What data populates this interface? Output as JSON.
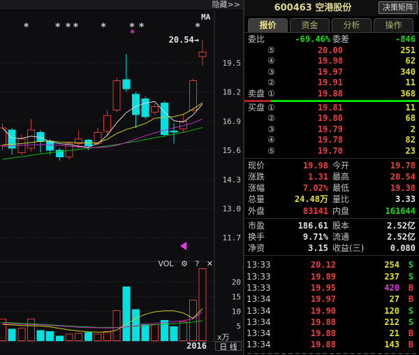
{
  "window": {
    "hide_button": "隐藏>>"
  },
  "header": {
    "code": "600463",
    "name": "空港股份",
    "matrix_button": "决策矩阵"
  },
  "tabs": [
    {
      "label": "报价",
      "name": "quote",
      "active": true
    },
    {
      "label": "资金",
      "name": "capital",
      "active": false
    },
    {
      "label": "分析",
      "name": "analysis",
      "active": false
    },
    {
      "label": "操作",
      "name": "operate",
      "active": false
    }
  ],
  "order_book": {
    "weibi_label": "委比",
    "weibi_value": "-69.46%",
    "weicha_label": "委差",
    "weicha_value": "-846",
    "sell_label": "卖盘",
    "buy_label": "买盘",
    "asks": [
      {
        "level": "⑤",
        "price": "20.00",
        "vol": "251"
      },
      {
        "level": "④",
        "price": "19.98",
        "vol": "62"
      },
      {
        "level": "③",
        "price": "19.97",
        "vol": "340"
      },
      {
        "level": "②",
        "price": "19.91",
        "vol": "11"
      },
      {
        "level": "①",
        "price": "19.88",
        "vol": "368",
        "labeled": true
      }
    ],
    "bids": [
      {
        "level": "①",
        "price": "19.81",
        "vol": "11",
        "labeled": true
      },
      {
        "level": "②",
        "price": "19.80",
        "vol": "68"
      },
      {
        "level": "③",
        "price": "19.79",
        "vol": "2"
      },
      {
        "level": "④",
        "price": "19.78",
        "vol": "82"
      },
      {
        "level": "⑤",
        "price": "19.70",
        "vol": "23"
      }
    ]
  },
  "quote_info": [
    [
      {
        "label": "现价",
        "value": "19.98",
        "color": "red"
      },
      {
        "label": "今开",
        "value": "19.78",
        "color": "red"
      }
    ],
    [
      {
        "label": "涨跌",
        "value": "1.31",
        "color": "red"
      },
      {
        "label": "最高",
        "value": "20.54",
        "color": "red"
      }
    ],
    [
      {
        "label": "涨幅",
        "value": "7.02%",
        "color": "red"
      },
      {
        "label": "最低",
        "value": "19.38",
        "color": "red"
      }
    ],
    [
      {
        "label": "总量",
        "value": "24.48万",
        "color": "yellow"
      },
      {
        "label": "量比",
        "value": "3.33",
        "color": "white"
      }
    ],
    [
      {
        "label": "外盘",
        "value": "83141",
        "color": "red"
      },
      {
        "label": "内盘",
        "value": "161644",
        "color": "green"
      }
    ]
  ],
  "fundamental_info": [
    [
      {
        "label": "市盈",
        "value": "186.61",
        "color": "white"
      },
      {
        "label": "股本",
        "value": "2.52亿",
        "color": "white"
      }
    ],
    [
      {
        "label": "换手",
        "value": "9.71%",
        "color": "white"
      },
      {
        "label": "流通",
        "value": "2.52亿",
        "color": "white"
      }
    ],
    [
      {
        "label": "净资",
        "value": "3.15",
        "color": "white"
      },
      {
        "label": "收益(三)",
        "value": "0.080",
        "color": "white"
      }
    ]
  ],
  "ticks": [
    {
      "time": "13:33",
      "price": "20.12",
      "vol": "254",
      "vol_color": "yellow",
      "side": "S"
    },
    {
      "time": "13:33",
      "price": "19.89",
      "vol": "237",
      "vol_color": "yellow",
      "side": "S"
    },
    {
      "time": "13:33",
      "price": "19.95",
      "vol": "420",
      "vol_color": "magenta",
      "side": "B"
    },
    {
      "time": "13:34",
      "price": "19.97",
      "vol": "27",
      "vol_color": "yellow",
      "side": "B"
    },
    {
      "time": "13:34",
      "price": "19.90",
      "vol": "120",
      "vol_color": "yellow",
      "side": "S"
    },
    {
      "time": "13:34",
      "price": "19.88",
      "vol": "212",
      "vol_color": "yellow",
      "side": "S"
    },
    {
      "time": "13:34",
      "price": "19.88",
      "vol": "21",
      "vol_color": "yellow",
      "side": "B"
    },
    {
      "time": "13:34",
      "price": "19.88",
      "vol": "143",
      "vol_color": "yellow",
      "side": "B"
    }
  ],
  "colors": {
    "up_red": "#da3c34",
    "down_cyan": "#00e2e2",
    "price_red": "#ed3f3f",
    "volume_yellow": "#e2e22e",
    "green": "#1ede1e",
    "magenta": "#e03ce0",
    "separator_green": "#00dd00",
    "title_khaki": "#ddd796"
  },
  "chart_data": {
    "type": "candlestick+volume",
    "ma_label": "MA",
    "x_axis_label": "2016",
    "period_label": "日 线",
    "vol_toolbar": {
      "label": "VOL",
      "gear_icon": "⚙",
      "help_icon": "?",
      "close_icon": "✕"
    },
    "price_axis": {
      "ticks": [
        19.5,
        18.2,
        16.9,
        15.6,
        14.3,
        13.0,
        11.7
      ]
    },
    "vol_axis": {
      "ticks": [
        20,
        15,
        10,
        5
      ],
      "unit": "x万"
    },
    "annotation": {
      "text": "20.54",
      "arrow": "→"
    },
    "candles": [
      [
        15.8,
        16.8,
        15.6,
        16.6
      ],
      [
        16.5,
        16.6,
        15.4,
        15.7
      ],
      [
        15.5,
        16.3,
        15.4,
        16.1
      ],
      [
        15.7,
        17.0,
        15.55,
        16.5
      ],
      [
        16.4,
        16.5,
        15.5,
        16.0
      ],
      [
        16.0,
        16.1,
        15.4,
        15.6
      ],
      [
        15.6,
        15.7,
        15.15,
        15.3
      ],
      [
        15.3,
        16.0,
        15.2,
        15.9
      ],
      [
        15.9,
        16.5,
        15.7,
        16.1
      ],
      [
        16.05,
        16.1,
        15.6,
        15.8
      ],
      [
        15.9,
        16.6,
        15.8,
        16.4
      ],
      [
        16.45,
        17.4,
        16.3,
        17.15
      ],
      [
        17.4,
        18.85,
        17.3,
        18.7
      ],
      [
        18.75,
        19.9,
        18.2,
        18.35
      ],
      [
        18.1,
        18.2,
        16.6,
        17.2
      ],
      [
        17.9,
        18.0,
        17.0,
        17.1
      ],
      [
        17.3,
        17.7,
        17.15,
        17.55
      ],
      [
        17.7,
        17.8,
        16.2,
        16.3
      ],
      [
        16.46,
        16.8,
        15.9,
        16.44
      ],
      [
        16.55,
        17.2,
        16.4,
        16.9
      ],
      [
        17.4,
        18.8,
        17.3,
        18.7
      ],
      [
        19.78,
        20.54,
        19.38,
        19.98
      ]
    ],
    "volumes": [
      7.4,
      3.9,
      4.3,
      7.4,
      3.5,
      3.1,
      1.5,
      2.3,
      2.5,
      2.7,
      2.3,
      3.1,
      10.2,
      18.3,
      10.6,
      5.6,
      5.5,
      6.9,
      4.8,
      6.4,
      13.8,
      24.5
    ],
    "ma_lines": {
      "white": [
        16.6,
        16.15,
        16.13,
        16.23,
        16.18,
        15.98,
        15.9,
        15.86,
        15.78,
        15.74,
        15.9,
        16.27,
        16.83,
        17.28,
        17.56,
        17.7,
        17.78,
        17.3,
        16.92,
        16.86,
        17.18,
        17.66
      ],
      "yellow": [
        15.85,
        15.87,
        15.9,
        15.95,
        16.0,
        16.02,
        15.97,
        15.96,
        15.94,
        15.92,
        15.94,
        16.09,
        16.35,
        16.53,
        16.65,
        16.8,
        17.03,
        17.07,
        17.1,
        17.21,
        17.44,
        17.72
      ],
      "magenta": [
        15.78,
        15.8,
        15.82,
        15.84,
        15.85,
        15.84,
        15.82,
        15.78,
        15.75,
        15.72,
        15.72,
        15.75,
        15.82,
        15.95,
        16.1,
        16.25,
        16.38,
        16.5,
        16.6,
        16.7,
        16.82,
        17.0
      ],
      "green": [
        15.2,
        15.26,
        15.32,
        15.38,
        15.44,
        15.49,
        15.54,
        15.59,
        15.64,
        15.69,
        15.74,
        15.8,
        15.86,
        15.93,
        16.0,
        16.08,
        16.16,
        16.24,
        16.32,
        16.4,
        16.5,
        16.62
      ]
    },
    "vol_ma_lines": {
      "yellow": [
        5.5,
        5.4,
        5.2,
        5.1,
        5.0,
        4.7,
        4.2,
        3.7,
        3.3,
        3.0,
        2.9,
        2.9,
        3.6,
        5.6,
        7.6,
        9.0,
        9.8,
        10.2,
        10.2,
        9.4,
        7.6,
        10.9
      ],
      "magenta": [
        5.9,
        5.8,
        5.6,
        5.5,
        5.4,
        5.2,
        5.0,
        4.8,
        4.6,
        4.5,
        4.4,
        4.3,
        4.4,
        4.7,
        5.1,
        5.5,
        5.9,
        6.2,
        6.5,
        6.8,
        7.4,
        9.8
      ],
      "green": [
        6.2,
        6.1,
        5.9,
        5.8,
        5.6,
        5.4,
        5.2,
        5.0,
        4.8,
        4.7,
        4.5,
        4.5,
        4.5,
        4.7,
        4.9,
        5.1,
        5.4,
        5.6,
        5.8,
        6.0,
        6.3,
        6.8
      ]
    },
    "star_marks": {
      "white": [
        2.5,
        5.8,
        6.9,
        7.7,
        10.6,
        13.6,
        14.6,
        20.5
      ],
      "magenta": 13.65,
      "star_glyph": "*"
    }
  }
}
